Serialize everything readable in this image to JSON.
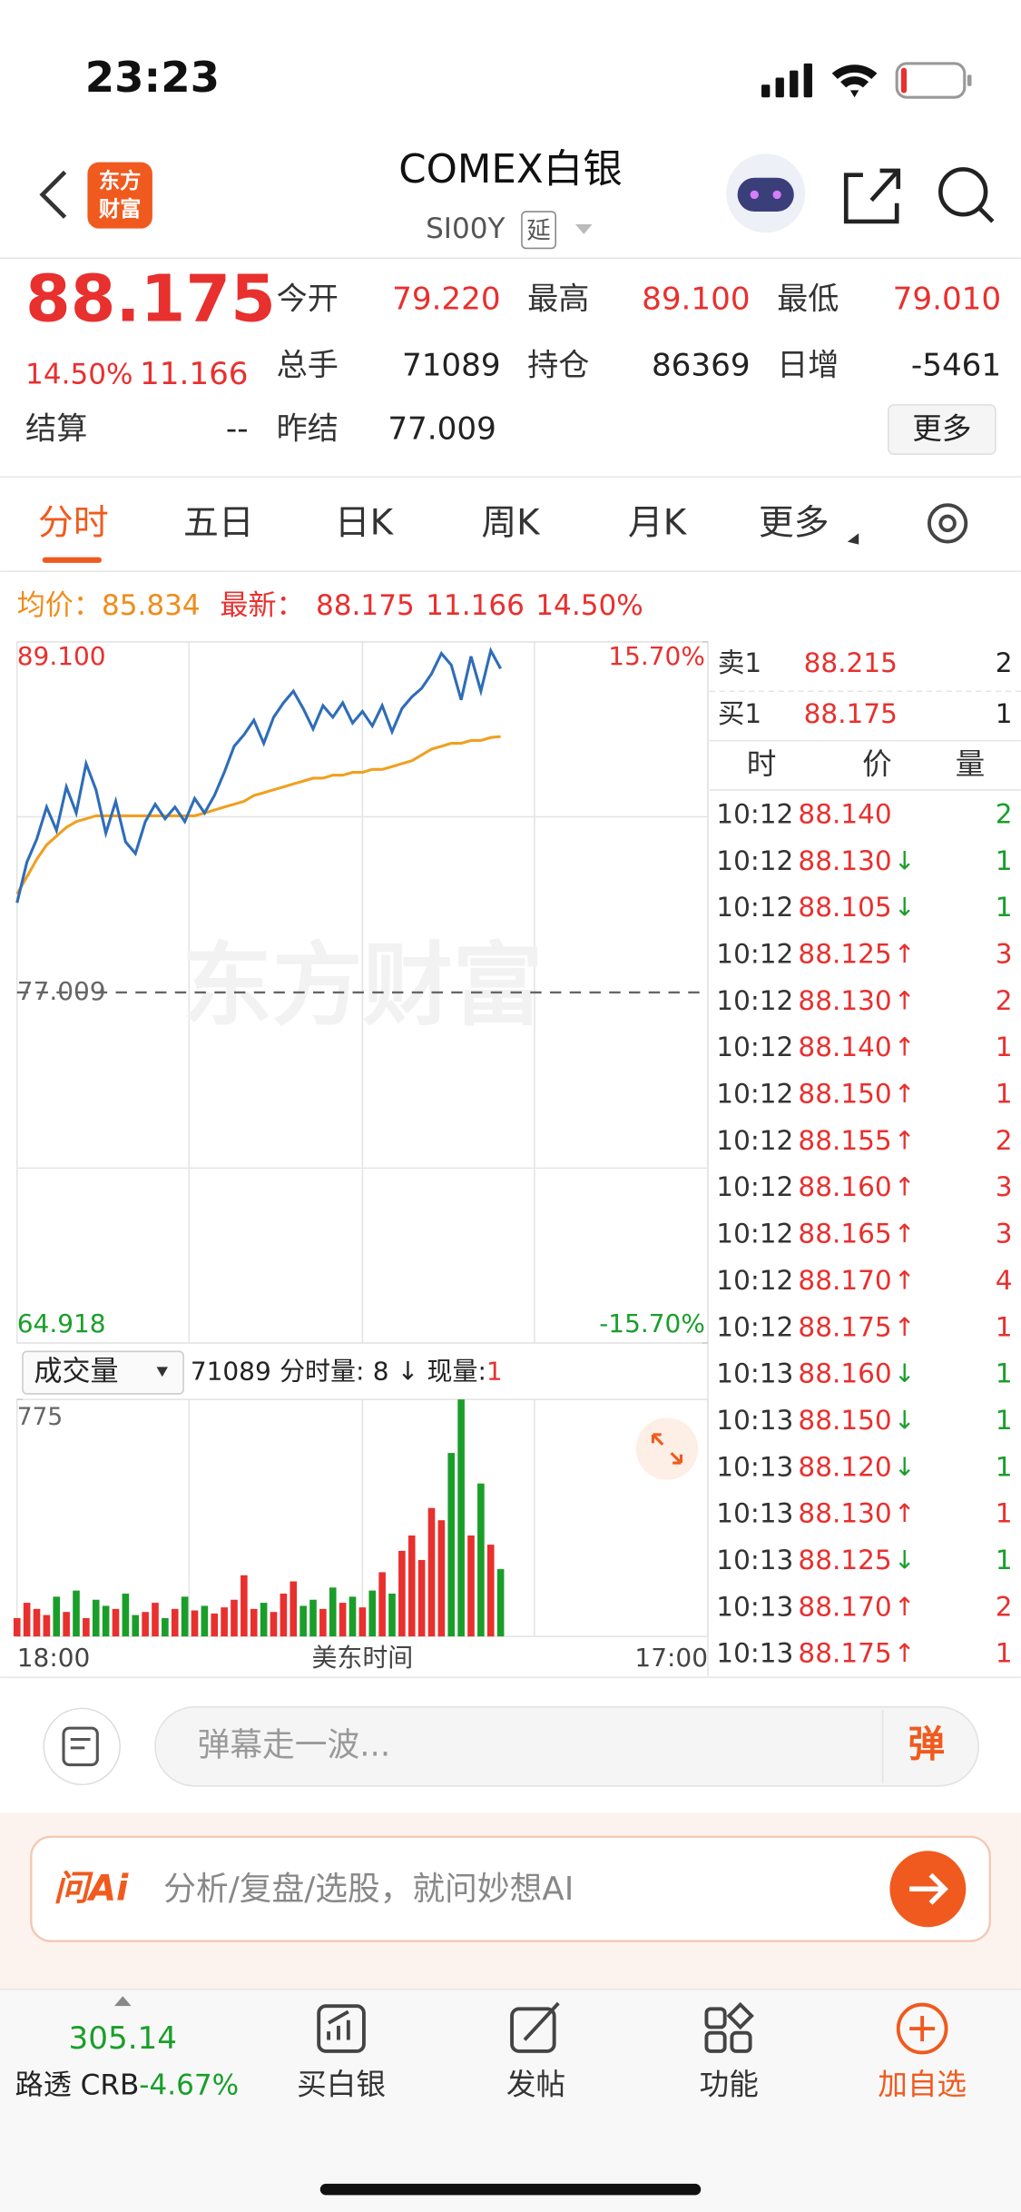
{
  "status_bar": {
    "time": "23:23"
  },
  "header": {
    "logo_line1": "东方",
    "logo_line2": "财富",
    "title": "COMEX白银",
    "code": "SI00Y",
    "delay_tag": "延"
  },
  "quote": {
    "price": "88.175",
    "change_pct": "14.50%",
    "change": "11.166",
    "fields": [
      {
        "label": "今开",
        "value": "79.220"
      },
      {
        "label": "最高",
        "value": "89.100"
      },
      {
        "label": "最低",
        "value": "79.010"
      },
      {
        "label": "总手",
        "value": "71089"
      },
      {
        "label": "持仓",
        "value": "86369"
      },
      {
        "label": "日增",
        "value": "-5461"
      }
    ],
    "settle_label": "结算",
    "settle_value": "--",
    "prev_label": "昨结",
    "prev_value": "77.009",
    "more": "更多"
  },
  "tabs": [
    "分时",
    "五日",
    "日K",
    "周K",
    "月K",
    "更多"
  ],
  "info": {
    "avg_label": "均价：",
    "avg": "85.834",
    "last_label": "最新：",
    "last": "88.175",
    "change": "11.166",
    "pct": "14.50%"
  },
  "watermark": "东方财富",
  "chart_data": [
    {
      "type": "line",
      "color": "#2e6db8",
      "values": [
        80.1,
        81.5,
        82.3,
        83.4,
        82.6,
        84.1,
        83.2,
        84.9,
        84.0,
        82.5,
        83.6,
        82.2,
        81.8,
        82.9,
        83.5,
        83.0,
        83.4,
        82.9,
        83.7,
        83.2,
        83.8,
        84.6,
        85.5,
        85.9,
        86.4,
        85.6,
        86.5,
        87.0,
        87.4,
        86.8,
        86.1,
        86.9,
        86.5,
        87.0,
        86.3,
        86.7,
        86.2,
        86.9,
        86.0,
        86.8,
        87.2,
        87.5,
        88.0,
        88.7,
        88.3,
        87.1,
        88.6,
        87.4,
        88.8,
        88.175
      ],
      "average": {
        "color": "#f0a020",
        "values": [
          80.4,
          81.0,
          81.6,
          82.1,
          82.4,
          82.7,
          82.9,
          83.0,
          83.1,
          83.1,
          83.1,
          83.1,
          83.1,
          83.1,
          83.1,
          83.1,
          83.1,
          83.1,
          83.1,
          83.2,
          83.3,
          83.4,
          83.5,
          83.6,
          83.8,
          83.9,
          84.0,
          84.1,
          84.2,
          84.3,
          84.4,
          84.4,
          84.5,
          84.5,
          84.6,
          84.6,
          84.7,
          84.7,
          84.8,
          84.9,
          85.0,
          85.2,
          85.4,
          85.5,
          85.6,
          85.6,
          85.7,
          85.7,
          85.8,
          85.834
        ]
      },
      "ylim": [
        64.918,
        89.1
      ],
      "yticks": [
        {
          "value": 89.1,
          "label": "89.100"
        },
        {
          "value": 77.009,
          "label": "77.009"
        },
        {
          "value": 64.918,
          "label": "64.918"
        }
      ],
      "y2lim": [
        -15.7,
        15.7
      ],
      "y2ticks": [
        {
          "value": 15.7,
          "label": "15.70%"
        },
        {
          "value": -15.7,
          "label": "-15.70%"
        }
      ],
      "xticks": [
        "18:00",
        "17:00"
      ],
      "xlabel": "美东时间"
    },
    {
      "type": "bar",
      "title": "成交量",
      "up_color": "#e8302e",
      "down_color": "#1a9e2a",
      "values": [
        60,
        110,
        90,
        70,
        130,
        80,
        150,
        60,
        120,
        100,
        90,
        140,
        70,
        80,
        110,
        60,
        90,
        130,
        85,
        100,
        75,
        95,
        120,
        200,
        90,
        110,
        80,
        140,
        180,
        100,
        120,
        90,
        160,
        110,
        130,
        95,
        150,
        210,
        140,
        280,
        330,
        250,
        420,
        380,
        600,
        775,
        330,
        500,
        300,
        220
      ],
      "ylim": [
        0,
        775
      ],
      "yticks": [
        775
      ],
      "info": {
        "total": "71089",
        "tick_vol_label": "分时量:",
        "tick_vol": "8",
        "arrow": "↓",
        "cur_vol_label": "现量:",
        "cur_vol": "1"
      }
    }
  ],
  "order_book": {
    "asks": [
      {
        "label": "卖1",
        "price": "88.215",
        "vol": "2"
      }
    ],
    "bids": [
      {
        "label": "买1",
        "price": "88.175",
        "vol": "1"
      }
    ]
  },
  "ticks_table": {
    "header": [
      "时",
      "价",
      "量"
    ],
    "rows": [
      {
        "time": "10:12",
        "price": "88.140",
        "vol": "2"
      },
      {
        "time": "10:12",
        "price": "88.130",
        "arrow": "↓",
        "vol": "1"
      },
      {
        "time": "10:12",
        "price": "88.105",
        "arrow": "↓",
        "vol": "1"
      },
      {
        "time": "10:12",
        "price": "88.125",
        "arrow": "↑",
        "vol": "3"
      },
      {
        "time": "10:12",
        "price": "88.130",
        "arrow": "↑",
        "vol": "2"
      },
      {
        "time": "10:12",
        "price": "88.140",
        "arrow": "↑",
        "vol": "1"
      },
      {
        "time": "10:12",
        "price": "88.150",
        "arrow": "↑",
        "vol": "1"
      },
      {
        "time": "10:12",
        "price": "88.155",
        "arrow": "↑",
        "vol": "2"
      },
      {
        "time": "10:12",
        "price": "88.160",
        "arrow": "↑",
        "vol": "3"
      },
      {
        "time": "10:12",
        "price": "88.165",
        "arrow": "↑",
        "vol": "3"
      },
      {
        "time": "10:12",
        "price": "88.170",
        "arrow": "↑",
        "vol": "4"
      },
      {
        "time": "10:12",
        "price": "88.175",
        "arrow": "↑",
        "vol": "1"
      },
      {
        "time": "10:13",
        "price": "88.160",
        "arrow": "↓",
        "vol": "1"
      },
      {
        "time": "10:13",
        "price": "88.150",
        "arrow": "↓",
        "vol": "1"
      },
      {
        "time": "10:13",
        "price": "88.120",
        "arrow": "↓",
        "vol": "1"
      },
      {
        "time": "10:13",
        "price": "88.130",
        "arrow": "↑",
        "vol": "1"
      },
      {
        "time": "10:13",
        "price": "88.125",
        "arrow": "↓",
        "vol": "1"
      },
      {
        "time": "10:13",
        "price": "88.170",
        "arrow": "↑",
        "vol": "2"
      },
      {
        "time": "10:13",
        "price": "88.175",
        "arrow": "↑",
        "vol": "1"
      }
    ]
  },
  "comment_bar": {
    "placeholder": "弹幕走一波...",
    "button": "弹"
  },
  "ai_bar": {
    "brand": "问Ai",
    "placeholder": "分析/复盘/选股，就问妙想AI"
  },
  "tab_bar": {
    "index_value": "305.14",
    "index_name": "路透 CRB",
    "index_change": "-4.67%",
    "items": [
      "买白银",
      "发帖",
      "功能",
      "加自选"
    ]
  }
}
